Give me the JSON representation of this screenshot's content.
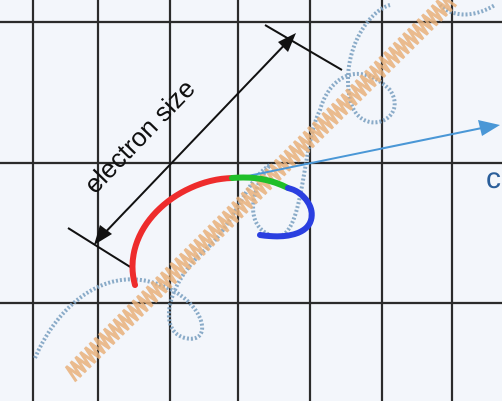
{
  "labels": {
    "dimension": "electron size",
    "edge_letter": "c"
  },
  "colors": {
    "background": "#f3f6fb",
    "grid": "#2b2b2b",
    "helix": "#7ea3c2",
    "wave": "#e8b07a",
    "arrow": "#4a97d6",
    "arc_red": "#ee2c2c",
    "arc_green": "#1fbf2a",
    "arc_blue": "#2a3fe0",
    "text": "#111111"
  }
}
